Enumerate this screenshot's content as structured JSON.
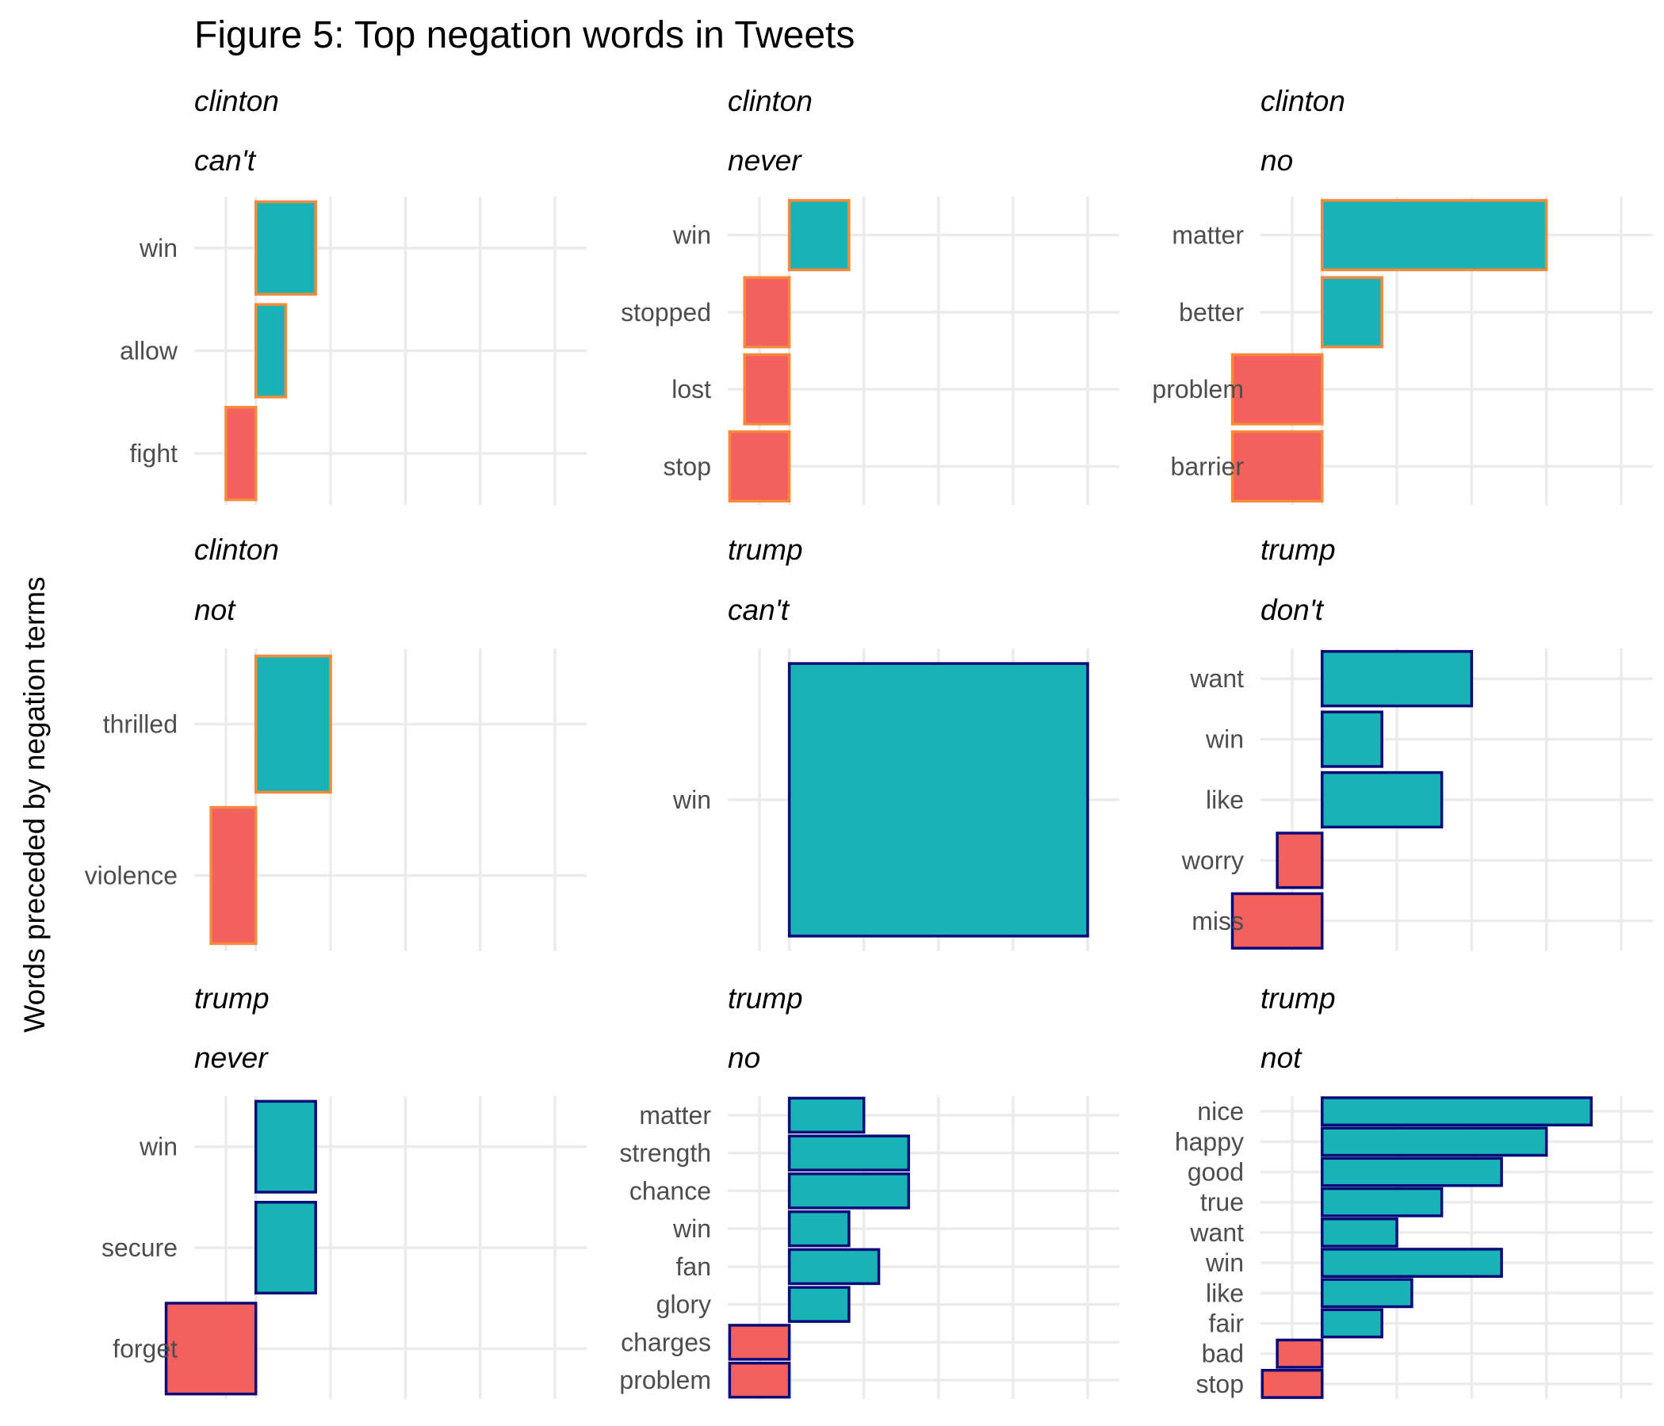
{
  "chart_data": {
    "type": "bar",
    "title": "Figure 5: Top negation words in Tweets",
    "ylabel": "Words preceded by negation terms",
    "xlabel": "",
    "grid": true,
    "legend": "none",
    "colors": {
      "positive": "#19b3b7",
      "negative": "#f4605d",
      "border_clinton": "#f6893a",
      "border_trump": "#0a0a78"
    },
    "panels": [
      {
        "candidate": "clinton",
        "term": "can't",
        "words": [
          "win",
          "allow",
          "fight"
        ],
        "values": [
          2,
          1,
          -1
        ]
      },
      {
        "candidate": "clinton",
        "term": "never",
        "words": [
          "win",
          "stopped",
          "lost",
          "stop"
        ],
        "values": [
          2,
          -1.5,
          -1.5,
          -2
        ]
      },
      {
        "candidate": "clinton",
        "term": "no",
        "words": [
          "matter",
          "better",
          "problem",
          "barrier"
        ],
        "values": [
          7.5,
          2,
          -3,
          -3
        ]
      },
      {
        "candidate": "clinton",
        "term": "not",
        "words": [
          "thrilled",
          "violence"
        ],
        "values": [
          2.5,
          -1.5
        ]
      },
      {
        "candidate": "trump",
        "term": "can't",
        "words": [
          "win"
        ],
        "values": [
          10
        ]
      },
      {
        "candidate": "trump",
        "term": "don't",
        "words": [
          "want",
          "win",
          "like",
          "worry",
          "miss"
        ],
        "values": [
          5,
          2,
          4,
          -1.5,
          -3
        ]
      },
      {
        "candidate": "trump",
        "term": "never",
        "words": [
          "win",
          "secure",
          "forget"
        ],
        "values": [
          2,
          2,
          -3
        ]
      },
      {
        "candidate": "trump",
        "term": "no",
        "words": [
          "matter",
          "strength",
          "chance",
          "win",
          "fan",
          "glory",
          "charges",
          "problem"
        ],
        "values": [
          2.5,
          4,
          4,
          2,
          3,
          2,
          -2,
          -2
        ]
      },
      {
        "candidate": "trump",
        "term": "not",
        "words": [
          "nice",
          "happy",
          "good",
          "true",
          "want",
          "win",
          "like",
          "fair",
          "bad",
          "stop"
        ],
        "values": [
          9,
          7.5,
          6,
          4,
          2.5,
          6,
          3,
          2,
          -1.5,
          -2
        ]
      }
    ]
  }
}
